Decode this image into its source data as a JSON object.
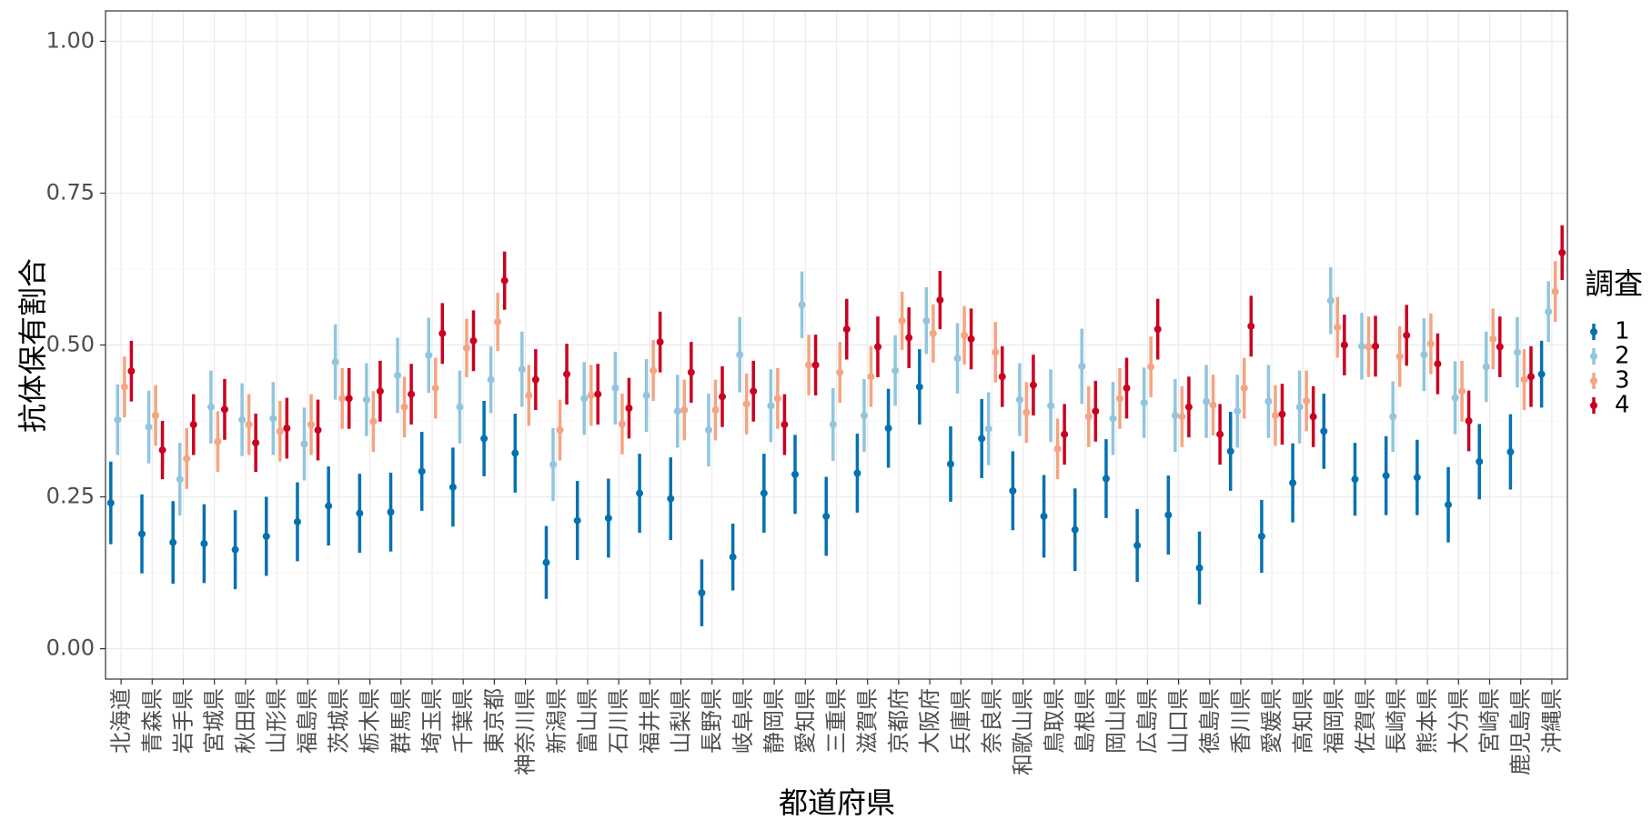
{
  "chart_data": {
    "type": "errorbar",
    "x_label": "都道府県",
    "y_label": "抗体保有割合",
    "legend_title": "調査",
    "legend_position": "right",
    "grid": true,
    "categories": [
      "北海道",
      "青森県",
      "岩手県",
      "宮城県",
      "秋田県",
      "山形県",
      "福島県",
      "茨城県",
      "栃木県",
      "群馬県",
      "埼玉県",
      "千葉県",
      "東京都",
      "神奈川県",
      "新潟県",
      "富山県",
      "石川県",
      "福井県",
      "山梨県",
      "長野県",
      "岐阜県",
      "静岡県",
      "愛知県",
      "三重県",
      "滋賀県",
      "京都府",
      "大阪府",
      "兵庫県",
      "奈良県",
      "和歌山県",
      "鳥取県",
      "島根県",
      "岡山県",
      "広島県",
      "山口県",
      "徳島県",
      "香川県",
      "愛媛県",
      "高知県",
      "福岡県",
      "佐賀県",
      "長崎県",
      "熊本県",
      "大分県",
      "宮崎県",
      "鹿児島県",
      "沖縄県"
    ],
    "ylim": [
      -0.05,
      1.05
    ],
    "yticks": [
      {
        "value": 0,
        "label": "0.00"
      },
      {
        "value": 0.25,
        "label": "0.25"
      },
      {
        "value": 0.5,
        "label": "0.50"
      },
      {
        "value": 0.75,
        "label": "0.75"
      },
      {
        "value": 1,
        "label": "1.00"
      }
    ],
    "series": [
      {
        "name": "1",
        "color": "#0571b0",
        "values": [
          0.24,
          0.189,
          0.175,
          0.173,
          0.163,
          0.185,
          0.209,
          0.235,
          0.223,
          0.225,
          0.292,
          0.266,
          0.346,
          0.322,
          0.142,
          0.211,
          0.215,
          0.256,
          0.247,
          0.092,
          0.151,
          0.256,
          0.287,
          0.218,
          0.289,
          0.363,
          0.431,
          0.304,
          0.346,
          0.26,
          0.218,
          0.196,
          0.28,
          0.17,
          0.22,
          0.133,
          0.325,
          0.185,
          0.273,
          0.358,
          0.279,
          0.285,
          0.282,
          0.237,
          0.308,
          0.324,
          0.452
        ],
        "errors": [
          0.068,
          0.065,
          0.068,
          0.065,
          0.065,
          0.065,
          0.065,
          0.065,
          0.065,
          0.065,
          0.065,
          0.065,
          0.062,
          0.065,
          0.06,
          0.065,
          0.065,
          0.065,
          0.068,
          0.055,
          0.055,
          0.065,
          0.065,
          0.065,
          0.065,
          0.065,
          0.062,
          0.062,
          0.065,
          0.065,
          0.068,
          0.068,
          0.065,
          0.06,
          0.065,
          0.06,
          0.065,
          0.06,
          0.065,
          0.062,
          0.06,
          0.065,
          0.062,
          0.062,
          0.062,
          0.062,
          0.055
        ]
      },
      {
        "name": "2",
        "color": "#92c5de",
        "values": [
          0.377,
          0.365,
          0.279,
          0.398,
          0.377,
          0.379,
          0.337,
          0.472,
          0.41,
          0.45,
          0.483,
          0.398,
          0.443,
          0.46,
          0.303,
          0.412,
          0.429,
          0.417,
          0.391,
          0.36,
          0.484,
          0.4,
          0.566,
          0.369,
          0.384,
          0.458,
          0.54,
          0.478,
          0.362,
          0.41,
          0.4,
          0.465,
          0.379,
          0.405,
          0.384,
          0.407,
          0.391,
          0.407,
          0.398,
          0.573,
          0.498,
          0.382,
          0.484,
          0.413,
          0.464,
          0.488,
          0.555
        ],
        "errors": [
          0.058,
          0.06,
          0.06,
          0.06,
          0.06,
          0.06,
          0.06,
          0.062,
          0.06,
          0.062,
          0.062,
          0.06,
          0.055,
          0.062,
          0.06,
          0.06,
          0.06,
          0.06,
          0.06,
          0.06,
          0.062,
          0.06,
          0.055,
          0.06,
          0.06,
          0.058,
          0.055,
          0.058,
          0.06,
          0.06,
          0.06,
          0.062,
          0.06,
          0.058,
          0.06,
          0.06,
          0.06,
          0.06,
          0.06,
          0.055,
          0.055,
          0.058,
          0.06,
          0.06,
          0.058,
          0.058,
          0.05
        ]
      },
      {
        "name": "3",
        "color": "#f4a582",
        "values": [
          0.431,
          0.384,
          0.313,
          0.341,
          0.369,
          0.358,
          0.369,
          0.412,
          0.374,
          0.398,
          0.429,
          0.495,
          0.538,
          0.417,
          0.36,
          0.417,
          0.37,
          0.458,
          0.393,
          0.393,
          0.403,
          0.412,
          0.467,
          0.455,
          0.448,
          0.54,
          0.519,
          0.516,
          0.488,
          0.389,
          0.329,
          0.382,
          0.412,
          0.464,
          0.382,
          0.401,
          0.429,
          0.384,
          0.408,
          0.529,
          0.497,
          0.481,
          0.502,
          0.424,
          0.51,
          0.443,
          0.588
        ],
        "errors": [
          0.05,
          0.05,
          0.05,
          0.05,
          0.05,
          0.05,
          0.05,
          0.05,
          0.05,
          0.05,
          0.05,
          0.048,
          0.048,
          0.05,
          0.05,
          0.05,
          0.05,
          0.05,
          0.05,
          0.05,
          0.05,
          0.05,
          0.05,
          0.05,
          0.05,
          0.048,
          0.048,
          0.048,
          0.05,
          0.05,
          0.05,
          0.05,
          0.05,
          0.05,
          0.05,
          0.05,
          0.05,
          0.05,
          0.05,
          0.05,
          0.05,
          0.05,
          0.05,
          0.05,
          0.05,
          0.05,
          0.05
        ]
      },
      {
        "name": "4",
        "color": "#ca0020",
        "values": [
          0.457,
          0.327,
          0.369,
          0.394,
          0.339,
          0.363,
          0.36,
          0.412,
          0.424,
          0.419,
          0.519,
          0.507,
          0.606,
          0.443,
          0.452,
          0.419,
          0.396,
          0.505,
          0.455,
          0.415,
          0.424,
          0.369,
          0.467,
          0.526,
          0.497,
          0.512,
          0.574,
          0.51,
          0.448,
          0.434,
          0.353,
          0.391,
          0.429,
          0.526,
          0.398,
          0.353,
          0.531,
          0.386,
          0.382,
          0.5,
          0.498,
          0.516,
          0.469,
          0.375,
          0.497,
          0.448,
          0.652
        ],
        "errors": [
          0.05,
          0.048,
          0.05,
          0.05,
          0.048,
          0.05,
          0.05,
          0.05,
          0.05,
          0.05,
          0.05,
          0.05,
          0.048,
          0.05,
          0.05,
          0.05,
          0.05,
          0.05,
          0.05,
          0.05,
          0.05,
          0.05,
          0.05,
          0.05,
          0.05,
          0.05,
          0.048,
          0.05,
          0.05,
          0.05,
          0.05,
          0.05,
          0.05,
          0.05,
          0.05,
          0.05,
          0.05,
          0.05,
          0.05,
          0.05,
          0.05,
          0.05,
          0.05,
          0.05,
          0.05,
          0.05,
          0.045
        ]
      }
    ]
  }
}
